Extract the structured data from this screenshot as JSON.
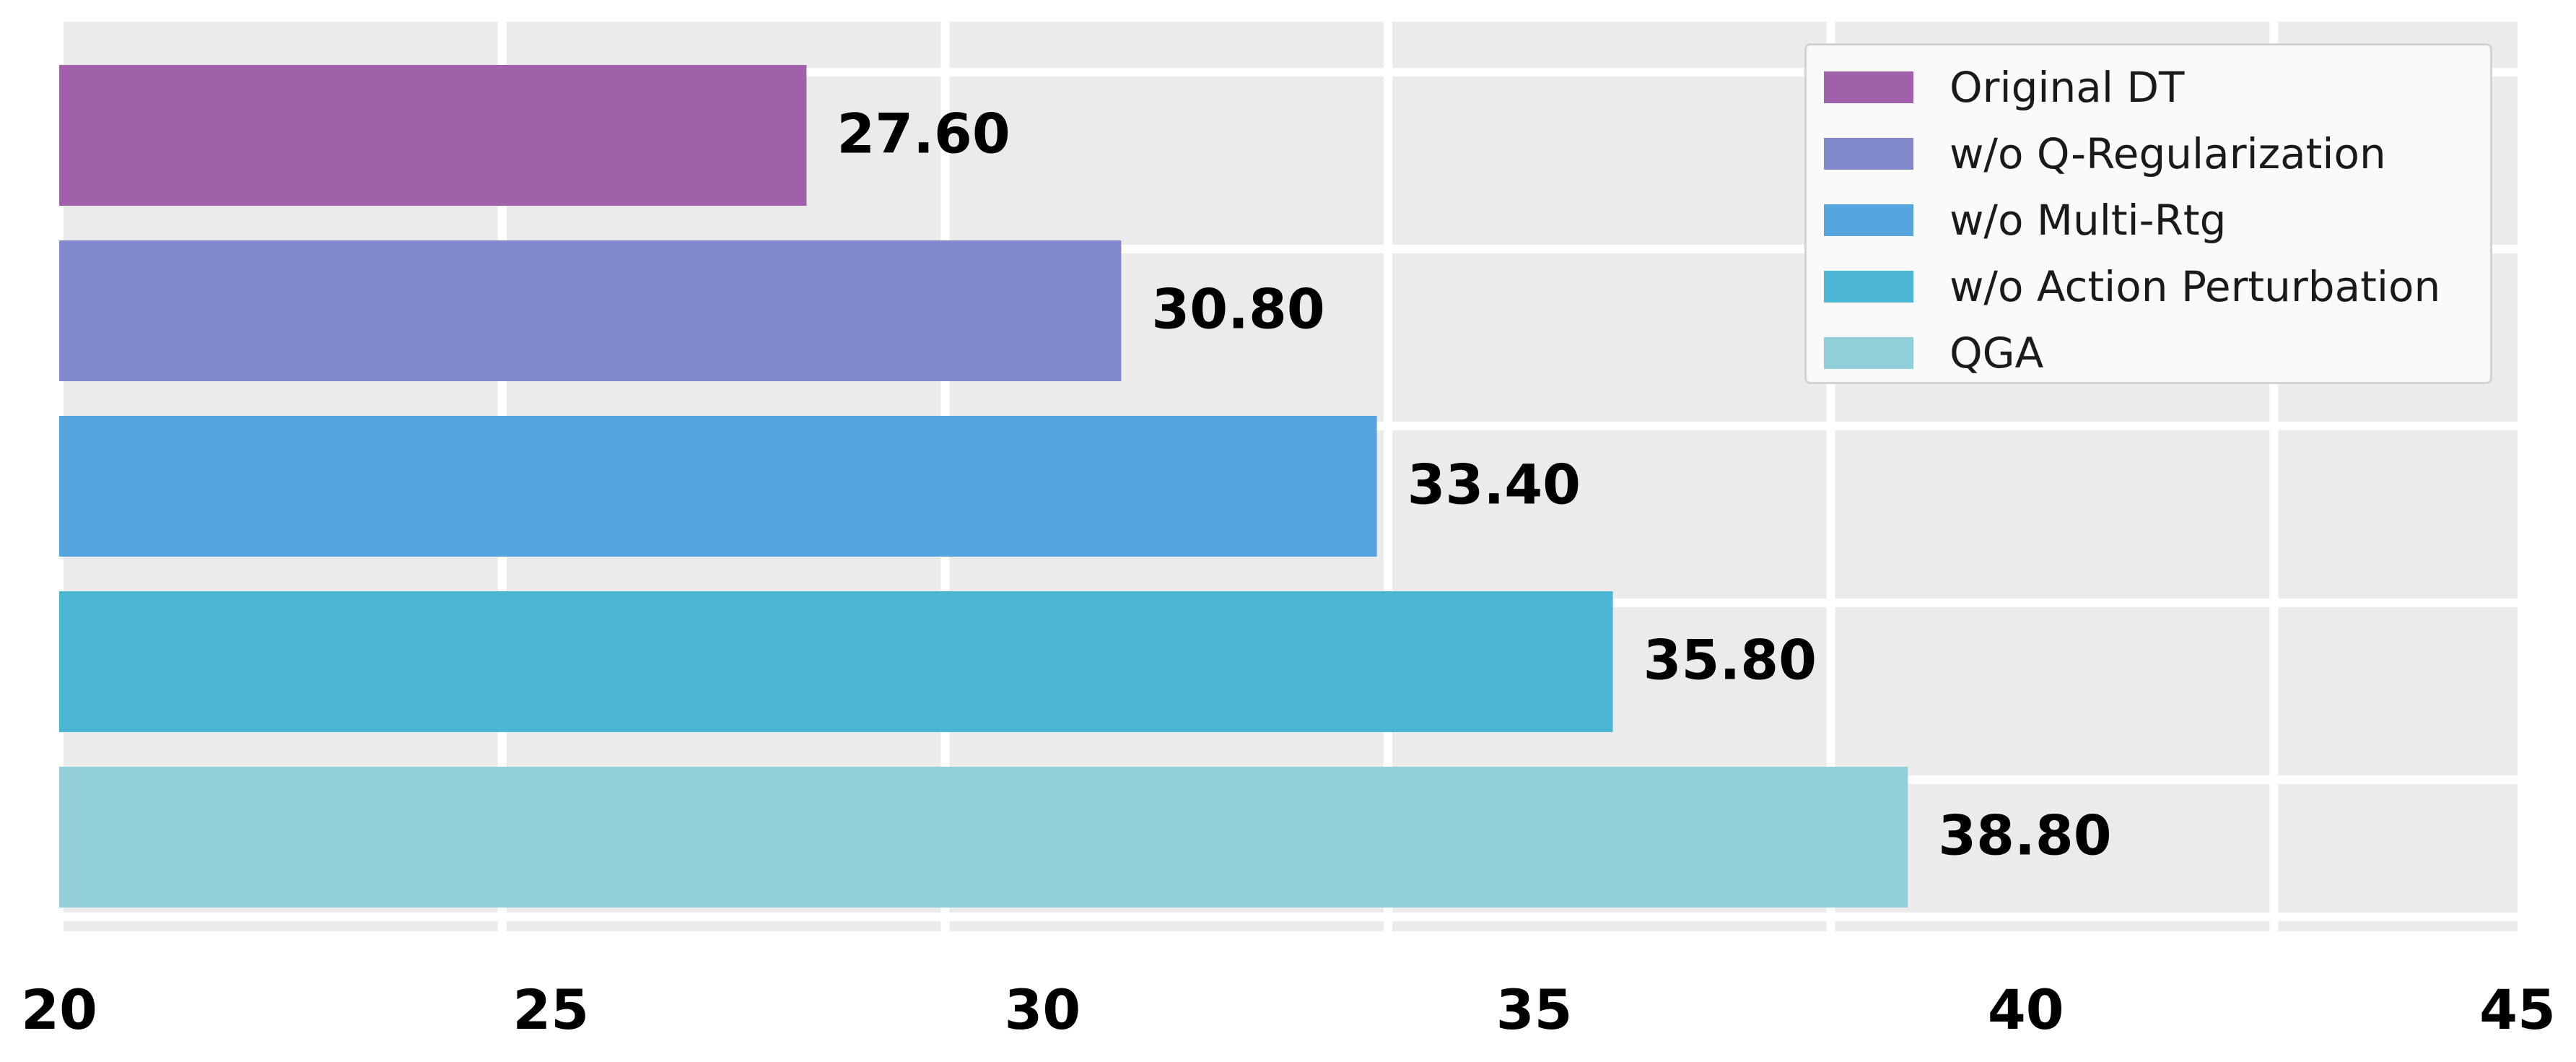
{
  "chart_data": {
    "type": "bar",
    "orientation": "horizontal",
    "categories": [
      "Original DT",
      "w/o Q-Regularization",
      "w/o Multi-Rtg",
      "w/o Action Perturbation",
      "QGA"
    ],
    "values": [
      27.6,
      30.8,
      33.4,
      35.8,
      38.8
    ],
    "value_labels": [
      "27.60",
      "30.80",
      "33.40",
      "35.80",
      "38.80"
    ],
    "colors": [
      "#a061aa",
      "#8188cc",
      "#56a5de",
      "#4ab6d4",
      "#91d0d9"
    ],
    "xlim": [
      20,
      45
    ],
    "xticks": [
      20,
      25,
      30,
      35,
      40,
      45
    ],
    "xtick_labels": [
      "20",
      "25",
      "30",
      "35",
      "40",
      "45"
    ],
    "grid": true,
    "grid_style": "white lines on light gray background",
    "background_color": "#ebebeb",
    "legend_position": "top-right",
    "title": "",
    "xlabel": "",
    "ylabel": ""
  }
}
